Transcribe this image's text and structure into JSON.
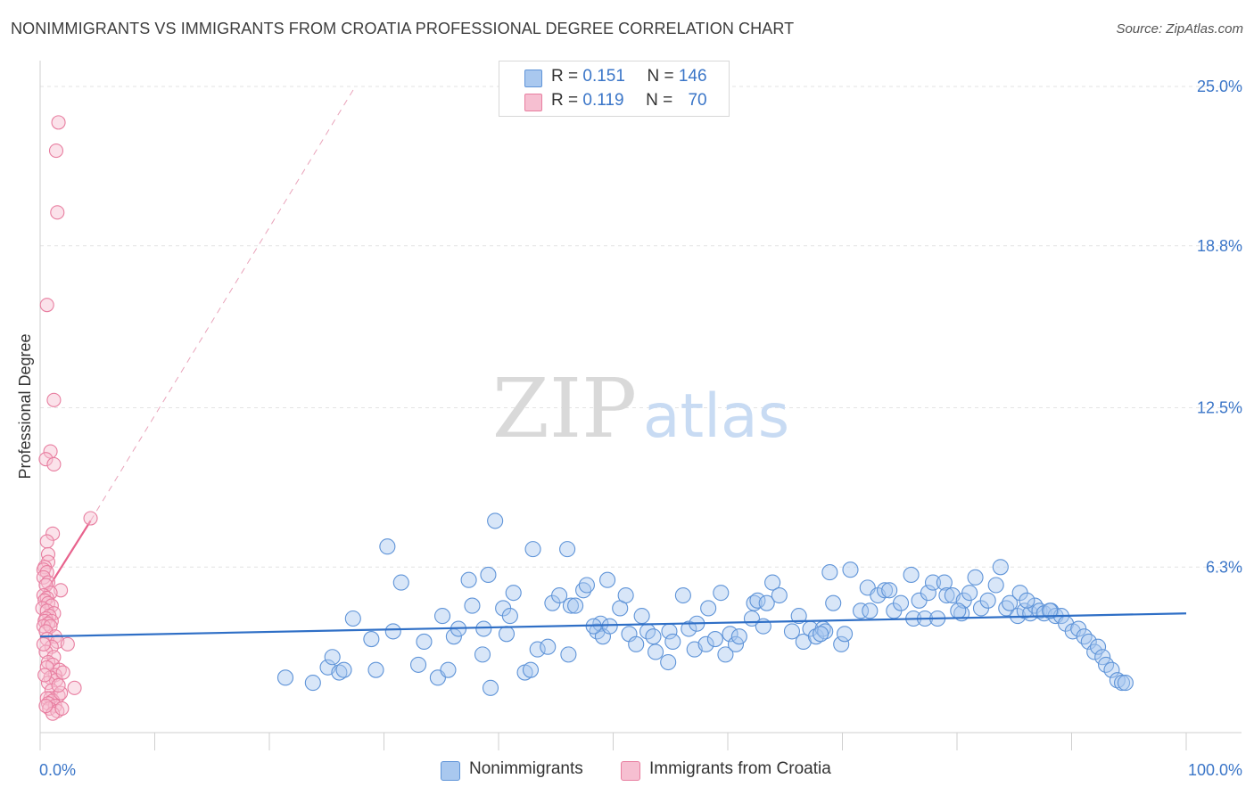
{
  "title": "NONIMMIGRANTS VS IMMIGRANTS FROM CROATIA PROFESSIONAL DEGREE CORRELATION CHART",
  "source": "Source: ZipAtlas.com",
  "watermark": {
    "zip": "ZIP",
    "atlas": "atlas"
  },
  "colors": {
    "blue_stroke": "#5f94d8",
    "blue_fill": "#a9c8ef",
    "blue_line": "#2f6fc6",
    "pink_stroke": "#e87ea0",
    "pink_fill": "#f6bfd1",
    "pink_line": "#e8638d",
    "tick_label": "#3b76c8",
    "grid": "#e3e3e3"
  },
  "stats_box": {
    "rows": [
      {
        "series": "Nonimmigrants",
        "r_label": "R = ",
        "r_value": "0.151",
        "n_label": "N = ",
        "n_value": "146"
      },
      {
        "series": "Immigrants from Croatia",
        "r_label": "R = ",
        "r_value": "0.119",
        "n_label": "N = ",
        "n_value": "70"
      }
    ]
  },
  "legend": [
    "Nonimmigrants",
    "Immigrants from Croatia"
  ],
  "chart_data": {
    "type": "scatter",
    "title": "NONIMMIGRANTS VS IMMIGRANTS FROM CROATIA PROFESSIONAL DEGREE CORRELATION CHART",
    "xlabel": "",
    "ylabel": "Professional Degree",
    "xlim": [
      0,
      100
    ],
    "ylim": [
      0,
      26
    ],
    "x_tick_labels": [
      {
        "value": 0,
        "label": "0.0%"
      },
      {
        "value": 100,
        "label": "100.0%"
      }
    ],
    "y_tick_labels": [
      {
        "value": 6.3,
        "label": "6.3%"
      },
      {
        "value": 12.5,
        "label": "12.5%"
      },
      {
        "value": 18.8,
        "label": "18.8%"
      },
      {
        "value": 25.0,
        "label": "25.0%"
      }
    ],
    "grid": true,
    "legend_position": "bottom-center",
    "series": [
      {
        "name": "Nonimmigrants",
        "r": 0.151,
        "n": 146,
        "trendline": {
          "x": [
            0,
            100
          ],
          "y": [
            3.6,
            4.5
          ],
          "style": "solid"
        },
        "points": [
          [
            21.4,
            2.0
          ],
          [
            23.8,
            1.8
          ],
          [
            25.1,
            2.4
          ],
          [
            25.5,
            2.8
          ],
          [
            26.1,
            2.2
          ],
          [
            26.5,
            2.3
          ],
          [
            27.3,
            4.3
          ],
          [
            28.9,
            3.5
          ],
          [
            29.3,
            2.3
          ],
          [
            30.3,
            7.1
          ],
          [
            30.8,
            3.8
          ],
          [
            31.5,
            5.7
          ],
          [
            33.0,
            2.5
          ],
          [
            33.5,
            3.4
          ],
          [
            34.7,
            2.0
          ],
          [
            35.1,
            4.4
          ],
          [
            35.6,
            2.3
          ],
          [
            36.1,
            3.6
          ],
          [
            36.5,
            3.9
          ],
          [
            37.4,
            5.8
          ],
          [
            37.7,
            4.8
          ],
          [
            38.6,
            2.9
          ],
          [
            38.7,
            3.9
          ],
          [
            39.1,
            6.0
          ],
          [
            39.3,
            1.6
          ],
          [
            39.7,
            8.1
          ],
          [
            40.4,
            4.7
          ],
          [
            40.7,
            3.7
          ],
          [
            41.0,
            4.4
          ],
          [
            41.3,
            5.3
          ],
          [
            42.3,
            2.2
          ],
          [
            42.8,
            2.3
          ],
          [
            43.0,
            7.0
          ],
          [
            43.4,
            3.1
          ],
          [
            44.3,
            3.2
          ],
          [
            44.7,
            4.9
          ],
          [
            45.3,
            5.2
          ],
          [
            46.0,
            7.0
          ],
          [
            46.1,
            2.9
          ],
          [
            46.3,
            4.8
          ],
          [
            46.7,
            4.8
          ],
          [
            47.4,
            5.4
          ],
          [
            47.7,
            5.6
          ],
          [
            48.6,
            3.8
          ],
          [
            48.9,
            4.1
          ],
          [
            49.1,
            3.6
          ],
          [
            49.5,
            5.8
          ],
          [
            49.7,
            4.0
          ],
          [
            50.6,
            4.7
          ],
          [
            51.1,
            5.2
          ],
          [
            51.4,
            3.7
          ],
          [
            52.0,
            3.3
          ],
          [
            52.5,
            4.4
          ],
          [
            53.0,
            3.8
          ],
          [
            53.5,
            3.6
          ],
          [
            53.7,
            3.0
          ],
          [
            54.8,
            2.6
          ],
          [
            54.9,
            3.8
          ],
          [
            55.2,
            3.4
          ],
          [
            56.1,
            5.2
          ],
          [
            56.6,
            3.9
          ],
          [
            57.1,
            3.1
          ],
          [
            57.3,
            4.1
          ],
          [
            58.1,
            3.3
          ],
          [
            58.3,
            4.7
          ],
          [
            58.9,
            3.5
          ],
          [
            59.4,
            5.3
          ],
          [
            59.8,
            2.9
          ],
          [
            60.2,
            3.7
          ],
          [
            60.7,
            3.3
          ],
          [
            61.0,
            3.6
          ],
          [
            62.1,
            4.3
          ],
          [
            62.3,
            4.9
          ],
          [
            62.6,
            5.0
          ],
          [
            63.1,
            4.0
          ],
          [
            63.4,
            4.9
          ],
          [
            63.9,
            5.7
          ],
          [
            64.5,
            5.2
          ],
          [
            65.6,
            3.8
          ],
          [
            66.2,
            4.4
          ],
          [
            66.6,
            3.4
          ],
          [
            67.2,
            3.9
          ],
          [
            67.7,
            3.6
          ],
          [
            68.3,
            3.9
          ],
          [
            68.5,
            3.8
          ],
          [
            68.9,
            6.1
          ],
          [
            69.2,
            4.9
          ],
          [
            69.9,
            3.3
          ],
          [
            70.2,
            3.7
          ],
          [
            70.7,
            6.2
          ],
          [
            71.6,
            4.6
          ],
          [
            72.2,
            5.5
          ],
          [
            72.4,
            4.6
          ],
          [
            73.1,
            5.2
          ],
          [
            73.7,
            5.4
          ],
          [
            74.1,
            5.4
          ],
          [
            74.5,
            4.6
          ],
          [
            75.1,
            4.9
          ],
          [
            76.0,
            6.0
          ],
          [
            76.2,
            4.3
          ],
          [
            76.7,
            5.0
          ],
          [
            77.2,
            4.3
          ],
          [
            77.5,
            5.3
          ],
          [
            77.9,
            5.7
          ],
          [
            78.3,
            4.3
          ],
          [
            78.9,
            5.7
          ],
          [
            79.1,
            5.2
          ],
          [
            79.6,
            5.2
          ],
          [
            80.4,
            4.5
          ],
          [
            80.6,
            5.0
          ],
          [
            81.1,
            5.3
          ],
          [
            81.6,
            5.9
          ],
          [
            82.1,
            4.7
          ],
          [
            82.7,
            5.0
          ],
          [
            83.4,
            5.6
          ],
          [
            83.8,
            6.3
          ],
          [
            84.3,
            4.7
          ],
          [
            84.6,
            4.9
          ],
          [
            85.3,
            4.4
          ],
          [
            85.5,
            5.3
          ],
          [
            85.9,
            4.6
          ],
          [
            86.4,
            4.5
          ],
          [
            86.8,
            4.8
          ],
          [
            87.2,
            4.6
          ],
          [
            87.6,
            4.5
          ],
          [
            88.2,
            4.6
          ],
          [
            88.6,
            4.4
          ],
          [
            89.1,
            4.4
          ],
          [
            89.5,
            4.1
          ],
          [
            90.1,
            3.8
          ],
          [
            90.6,
            3.9
          ],
          [
            91.1,
            3.6
          ],
          [
            91.5,
            3.4
          ],
          [
            92.0,
            3.0
          ],
          [
            92.3,
            3.2
          ],
          [
            92.7,
            2.8
          ],
          [
            93.0,
            2.5
          ],
          [
            93.5,
            2.3
          ],
          [
            94.0,
            1.9
          ],
          [
            94.4,
            1.8
          ],
          [
            94.7,
            1.8
          ],
          [
            88.1,
            4.6
          ],
          [
            86.1,
            5.0
          ],
          [
            80.1,
            4.6
          ],
          [
            68.1,
            3.7
          ],
          [
            48.3,
            4.0
          ]
        ]
      },
      {
        "name": "Immigrants from Croatia",
        "r": 0.119,
        "n": 70,
        "trendline": {
          "x": [
            0.3,
            4.4
          ],
          "y": [
            5.2,
            8.1
          ],
          "style": "solid",
          "extended_dashed_to": {
            "x": 27.5,
            "y": 25.0
          }
        },
        "points": [
          [
            1.6,
            23.6
          ],
          [
            1.4,
            22.5
          ],
          [
            1.5,
            20.1
          ],
          [
            0.6,
            16.5
          ],
          [
            1.2,
            12.8
          ],
          [
            0.9,
            10.8
          ],
          [
            0.5,
            10.5
          ],
          [
            1.2,
            10.3
          ],
          [
            4.4,
            8.2
          ],
          [
            1.1,
            7.6
          ],
          [
            0.6,
            7.3
          ],
          [
            0.7,
            6.8
          ],
          [
            0.7,
            6.5
          ],
          [
            0.4,
            6.3
          ],
          [
            0.3,
            6.2
          ],
          [
            0.6,
            6.1
          ],
          [
            0.3,
            5.9
          ],
          [
            0.7,
            5.7
          ],
          [
            0.5,
            5.6
          ],
          [
            1.8,
            5.4
          ],
          [
            0.9,
            5.3
          ],
          [
            0.3,
            5.2
          ],
          [
            0.6,
            5.1
          ],
          [
            0.4,
            5.0
          ],
          [
            0.7,
            4.9
          ],
          [
            1.0,
            4.8
          ],
          [
            0.2,
            4.7
          ],
          [
            0.6,
            4.6
          ],
          [
            1.2,
            4.5
          ],
          [
            0.8,
            4.4
          ],
          [
            0.5,
            4.3
          ],
          [
            0.4,
            4.2
          ],
          [
            1.0,
            4.2
          ],
          [
            0.7,
            4.1
          ],
          [
            0.3,
            4.0
          ],
          [
            0.9,
            4.0
          ],
          [
            0.5,
            3.8
          ],
          [
            1.3,
            3.6
          ],
          [
            0.6,
            3.5
          ],
          [
            1.5,
            3.4
          ],
          [
            2.4,
            3.3
          ],
          [
            1.0,
            3.2
          ],
          [
            0.5,
            3.0
          ],
          [
            1.2,
            2.8
          ],
          [
            0.7,
            2.6
          ],
          [
            1.1,
            2.5
          ],
          [
            0.6,
            2.4
          ],
          [
            1.7,
            2.3
          ],
          [
            1.3,
            2.1
          ],
          [
            0.9,
            2.0
          ],
          [
            1.4,
            1.9
          ],
          [
            0.7,
            1.8
          ],
          [
            3.0,
            1.6
          ],
          [
            1.0,
            1.5
          ],
          [
            1.6,
            1.3
          ],
          [
            0.9,
            1.2
          ],
          [
            0.6,
            1.2
          ],
          [
            1.1,
            1.1
          ],
          [
            0.7,
            1.0
          ],
          [
            1.3,
            0.9
          ],
          [
            0.8,
            0.8
          ],
          [
            1.5,
            0.7
          ],
          [
            1.1,
            0.6
          ],
          [
            0.5,
            0.9
          ],
          [
            1.8,
            1.4
          ],
          [
            0.4,
            2.1
          ],
          [
            1.9,
            0.8
          ],
          [
            0.3,
            3.3
          ],
          [
            2.0,
            2.2
          ],
          [
            1.6,
            1.7
          ]
        ]
      }
    ]
  }
}
